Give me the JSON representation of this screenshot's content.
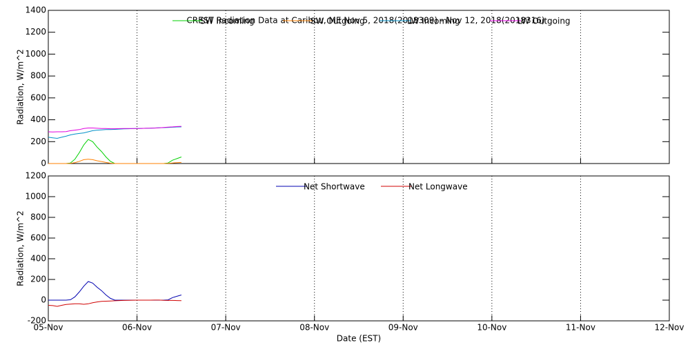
{
  "chart_data": [
    {
      "type": "line",
      "title": "CREST Radiation Data at Caribou, ME   Nov  5, 2018(2018309) - Nov 12, 2018(2018316)",
      "y_label": "Radiation, W/m^2",
      "x": [
        0,
        0.05,
        0.1,
        0.15,
        0.2,
        0.25,
        0.3,
        0.35,
        0.4,
        0.45,
        0.5,
        0.55,
        0.6,
        0.65,
        0.7,
        0.75,
        0.8,
        0.85,
        0.9,
        0.95,
        1.0,
        1.05,
        1.1,
        1.15,
        1.2,
        1.25,
        1.3,
        1.35,
        1.4,
        1.45,
        1.5
      ],
      "xlim": [
        0,
        7
      ],
      "xticks": [
        {
          "value": 0,
          "label": "05-Nov"
        },
        {
          "value": 1,
          "label": "06-Nov"
        },
        {
          "value": 2,
          "label": "07-Nov"
        },
        {
          "value": 3,
          "label": "08-Nov"
        },
        {
          "value": 4,
          "label": "09-Nov"
        },
        {
          "value": 5,
          "label": "10-Nov"
        },
        {
          "value": 6,
          "label": "11-Nov"
        },
        {
          "value": 7,
          "label": "12-Nov"
        }
      ],
      "ylim": [
        0,
        1400
      ],
      "yticks": [
        0,
        200,
        400,
        600,
        800,
        1000,
        1200,
        1400
      ],
      "grid": true,
      "series": [
        {
          "name": "SW Incoming",
          "color": "#00d000",
          "values": [
            0,
            0,
            0,
            0,
            0,
            5,
            40,
            100,
            170,
            220,
            200,
            150,
            110,
            60,
            20,
            0,
            0,
            0,
            0,
            0,
            0,
            0,
            0,
            0,
            0,
            0,
            0,
            5,
            30,
            45,
            60
          ]
        },
        {
          "name": "SW Outgoing",
          "color": "#ff8000",
          "values": [
            0,
            0,
            0,
            0,
            0,
            1,
            8,
            20,
            35,
            40,
            35,
            25,
            18,
            10,
            3,
            0,
            0,
            0,
            0,
            0,
            0,
            0,
            0,
            0,
            0,
            0,
            0,
            2,
            5,
            8,
            10
          ]
        },
        {
          "name": "LW Incoming",
          "color": "#0090c8",
          "values": [
            240,
            235,
            230,
            240,
            250,
            262,
            270,
            275,
            280,
            290,
            300,
            305,
            308,
            310,
            310,
            312,
            315,
            317,
            318,
            319,
            320,
            321,
            322,
            323,
            325,
            327,
            328,
            330,
            332,
            334,
            335
          ]
        },
        {
          "name": "LW Outgoing",
          "color": "#e000e0",
          "values": [
            290,
            288,
            290,
            290,
            292,
            300,
            305,
            310,
            320,
            325,
            325,
            322,
            320,
            320,
            318,
            318,
            319,
            320,
            320,
            320,
            320,
            321,
            322,
            323,
            324,
            326,
            330,
            333,
            335,
            338,
            340
          ]
        }
      ]
    },
    {
      "type": "line",
      "y_label": "Radiation, W/m^2",
      "x_label": "Date (EST)",
      "x": [
        0,
        0.05,
        0.1,
        0.15,
        0.2,
        0.25,
        0.3,
        0.35,
        0.4,
        0.45,
        0.5,
        0.55,
        0.6,
        0.65,
        0.7,
        0.75,
        0.8,
        0.85,
        0.9,
        0.95,
        1.0,
        1.05,
        1.1,
        1.15,
        1.2,
        1.25,
        1.3,
        1.35,
        1.4,
        1.45,
        1.5
      ],
      "xlim": [
        0,
        7
      ],
      "xticks": [
        {
          "value": 0,
          "label": "05-Nov"
        },
        {
          "value": 1,
          "label": "06-Nov"
        },
        {
          "value": 2,
          "label": "07-Nov"
        },
        {
          "value": 3,
          "label": "08-Nov"
        },
        {
          "value": 4,
          "label": "09-Nov"
        },
        {
          "value": 5,
          "label": "10-Nov"
        },
        {
          "value": 6,
          "label": "11-Nov"
        },
        {
          "value": 7,
          "label": "12-Nov"
        }
      ],
      "ylim": [
        -200,
        1200
      ],
      "yticks": [
        -200,
        0,
        200,
        400,
        600,
        800,
        1000,
        1200
      ],
      "grid": true,
      "series": [
        {
          "name": "Net Shortwave",
          "color": "#0000b0",
          "values": [
            0,
            0,
            0,
            0,
            0,
            4,
            32,
            80,
            135,
            180,
            165,
            125,
            92,
            50,
            17,
            0,
            0,
            0,
            0,
            0,
            0,
            0,
            0,
            0,
            0,
            0,
            0,
            3,
            25,
            37,
            50
          ]
        },
        {
          "name": "Net Longwave",
          "color": "#d00000",
          "values": [
            -50,
            -53,
            -60,
            -50,
            -42,
            -38,
            -35,
            -35,
            -40,
            -35,
            -25,
            -17,
            -12,
            -10,
            -8,
            -6,
            -4,
            -3,
            -2,
            -1,
            0,
            0,
            0,
            0,
            1,
            1,
            -2,
            -3,
            -3,
            -4,
            -5
          ]
        }
      ]
    }
  ]
}
